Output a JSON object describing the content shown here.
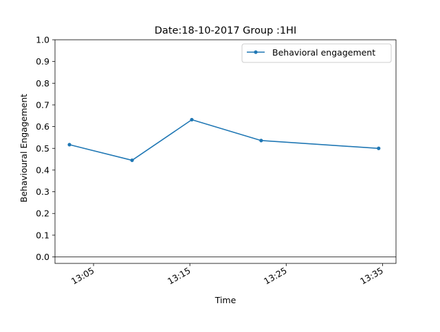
{
  "chart_data": {
    "type": "line",
    "title": "Date:18-10-2017 Group :1HI",
    "xlabel": "Time",
    "ylabel": "Behavioural Engagement",
    "x_ticks": [
      "13:05",
      "13:15",
      "13:25",
      "13:35"
    ],
    "x_tick_minutes": [
      785,
      795,
      805,
      815
    ],
    "xlim_minutes": [
      781.0,
      816.4
    ],
    "ylim": [
      -0.03,
      1.0
    ],
    "y_ticks": [
      "0.0",
      "0.1",
      "0.2",
      "0.3",
      "0.4",
      "0.5",
      "0.6",
      "0.7",
      "0.8",
      "0.9",
      "1.0"
    ],
    "y_tick_values": [
      0.0,
      0.1,
      0.2,
      0.3,
      0.4,
      0.5,
      0.6,
      0.7,
      0.8,
      0.9,
      1.0
    ],
    "reference_line_y": 0.0,
    "legend_position": "top-right",
    "grid": false,
    "series": [
      {
        "name": "Behavioral engagement",
        "color": "#1f77b4",
        "marker": "point",
        "x_minutes": [
          782.5,
          789.0,
          795.2,
          802.4,
          814.6
        ],
        "values": [
          0.517,
          0.445,
          0.632,
          0.536,
          0.5
        ]
      }
    ]
  }
}
